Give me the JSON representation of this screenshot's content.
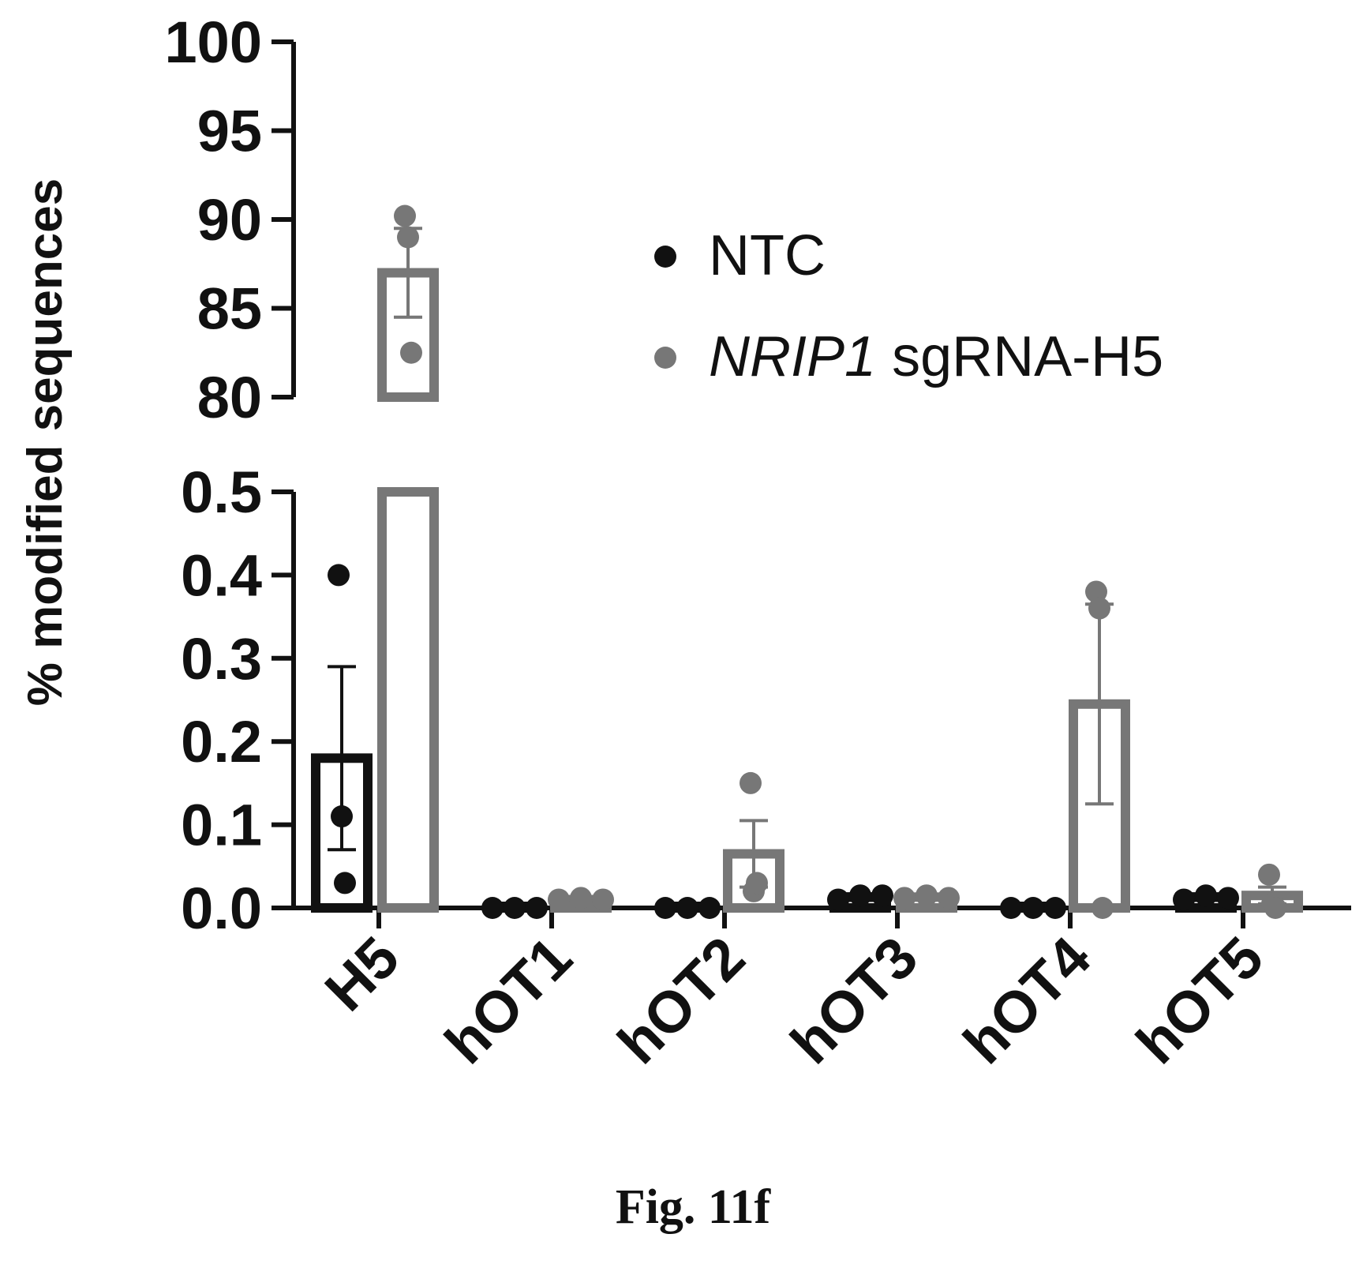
{
  "chart_data": {
    "type": "bar",
    "ylabel": "% modified sequences",
    "categories": [
      "H5",
      "hOT1",
      "hOT2",
      "hOT3",
      "hOT4",
      "hOT5"
    ],
    "y_axis_broken": true,
    "y_segments": [
      {
        "range": [
          0.0,
          0.5
        ],
        "ticks": [
          "0.0",
          "0.1",
          "0.2",
          "0.3",
          "0.4",
          "0.5"
        ]
      },
      {
        "range": [
          80,
          100
        ],
        "ticks": [
          "80",
          "85",
          "90",
          "95",
          "100"
        ]
      }
    ],
    "series": [
      {
        "name": "NTC",
        "color": "#111111",
        "values": [
          0.18,
          0.0,
          0.0,
          0.013,
          0.0,
          0.013
        ],
        "error": [
          0.11,
          0.0,
          0.0,
          0.004,
          0.0,
          0.004
        ],
        "points": [
          [
            0.4,
            0.11,
            0.03
          ],
          [
            0.0,
            0.0,
            0.0
          ],
          [
            0.0,
            0.0,
            0.0
          ],
          [
            0.01,
            0.015,
            0.015
          ],
          [
            0.0,
            0.0,
            0.0
          ],
          [
            0.01,
            0.015,
            0.012
          ]
        ]
      },
      {
        "name_prefix": "NRIP1",
        "name": "sgRNA-H5",
        "color": "#777777",
        "values": [
          87.0,
          0.01,
          0.065,
          0.013,
          0.245,
          0.015
        ],
        "error": [
          2.5,
          0.003,
          0.04,
          0.003,
          0.12,
          0.01
        ],
        "points": [
          [
            90.2,
            89.0,
            82.5
          ],
          [
            0.01,
            0.012,
            0.01
          ],
          [
            0.15,
            0.02,
            0.03
          ],
          [
            0.012,
            0.015,
            0.012
          ],
          [
            0.38,
            0.36,
            0.0
          ],
          [
            0.04,
            0.005,
            0.0
          ]
        ]
      }
    ],
    "legend_position": "top-right"
  },
  "caption": "Fig. 11f"
}
